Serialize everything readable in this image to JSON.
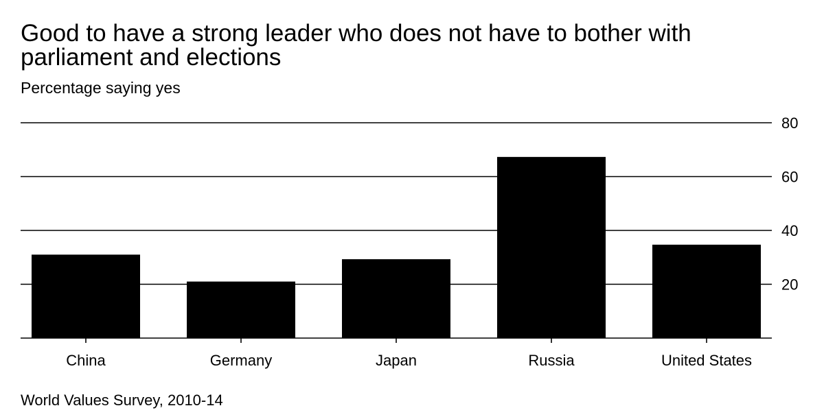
{
  "header": {
    "title": "Good to have a strong leader who does not have to bother with parliament and elections",
    "subtitle": "Percentage saying yes"
  },
  "footer": {
    "source": "World Values Survey, 2010-14"
  },
  "chart_data": {
    "type": "bar",
    "title": "Good to have a strong leader who does not have to bother with parliament and elections",
    "subtitle": "Percentage saying yes",
    "xlabel": "",
    "ylabel": "",
    "categories": [
      "China",
      "Germany",
      "Japan",
      "Russia",
      "United States"
    ],
    "values": [
      31,
      21,
      29.3,
      67.3,
      34.7
    ],
    "ylim": [
      0,
      80
    ],
    "yticks": [
      20,
      40,
      60,
      80
    ],
    "grid": true,
    "y_axis_side": "right",
    "bar_color": "#000000",
    "source": "World Values Survey, 2010-14"
  }
}
